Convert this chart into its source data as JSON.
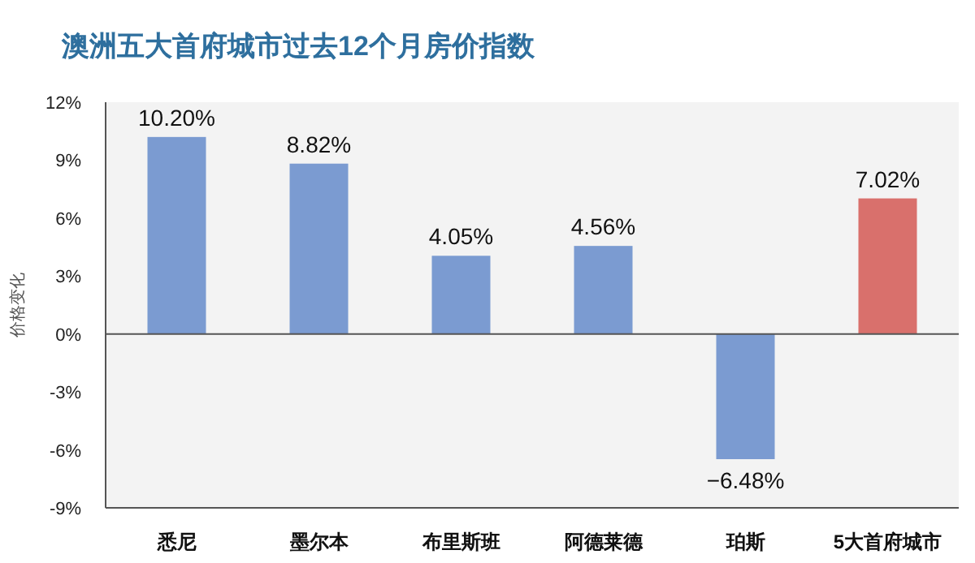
{
  "chart_data": {
    "type": "bar",
    "title": "澳洲五大首府城市过去12个月房价指数",
    "ylabel": "价格变化",
    "categories": [
      "悉尼",
      "墨尔本",
      "布里斯班",
      "阿德莱德",
      "珀斯",
      "5大首府城市"
    ],
    "values": [
      10.2,
      8.82,
      4.05,
      4.56,
      -6.48,
      7.02
    ],
    "value_labels": [
      "10.20%",
      "8.82%",
      "4.05%",
      "4.56%",
      "−6.48%",
      "7.02%"
    ],
    "colors": [
      "#7b9bd1",
      "#7b9bd1",
      "#7b9bd1",
      "#7b9bd1",
      "#7b9bd1",
      "#d9706c"
    ],
    "ylim": [
      -9,
      12
    ],
    "yticks": [
      {
        "value": 12,
        "label": "12%"
      },
      {
        "value": 9,
        "label": "9%"
      },
      {
        "value": 6,
        "label": "6%"
      },
      {
        "value": 3,
        "label": "3%"
      },
      {
        "value": 0,
        "label": "0%"
      },
      {
        "value": -3,
        "label": "-3%"
      },
      {
        "value": -6,
        "label": "-6%"
      },
      {
        "value": -9,
        "label": "-9%"
      }
    ]
  }
}
